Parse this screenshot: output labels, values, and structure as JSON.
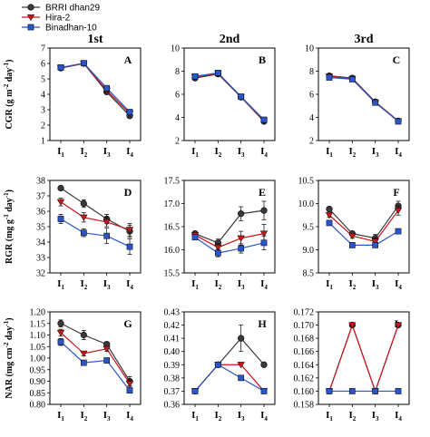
{
  "legend": [
    {
      "name": "BRRI dhan29",
      "color": "#3a3a3a",
      "marker": "circle"
    },
    {
      "name": "Hira-2",
      "color": "#c8161d",
      "marker": "triangle-down"
    },
    {
      "name": "Binadhan-10",
      "color": "#2b55c8",
      "marker": "square"
    }
  ],
  "column_titles": [
    "1st",
    "2nd",
    "3rd"
  ],
  "row_titles": [
    {
      "main": "CGR (g m",
      "sup1": "-2",
      "mid": " day",
      "sup2": "-1",
      "end": ")"
    },
    {
      "main": "RGR (mg g",
      "sup1": "-1",
      "mid": " day",
      "sup2": "-1",
      "end": ")"
    },
    {
      "main": "NAR (mg cm",
      "sup1": "-2",
      "mid": " day",
      "sup2": "-1",
      "end": ")"
    }
  ],
  "chart_data": [
    {
      "type": "line",
      "panel": "A",
      "categories": [
        "I1",
        "I2",
        "I3",
        "I4"
      ],
      "ylim": [
        1,
        7
      ],
      "yticks": [
        1,
        2,
        3,
        4,
        5,
        6,
        7
      ],
      "series": [
        {
          "name": "BRRI dhan29",
          "values": [
            5.7,
            6.0,
            4.15,
            2.6
          ],
          "err": [
            0.08,
            0.08,
            0.1,
            0.08
          ]
        },
        {
          "name": "Hira-2",
          "values": [
            5.72,
            6.0,
            4.25,
            2.75
          ],
          "err": [
            0.06,
            0.06,
            0.1,
            0.08
          ]
        },
        {
          "name": "Binadhan-10",
          "values": [
            5.74,
            6.02,
            4.4,
            2.85
          ],
          "err": [
            0.06,
            0.06,
            0.1,
            0.08
          ]
        }
      ]
    },
    {
      "type": "line",
      "panel": "B",
      "categories": [
        "I1",
        "I2",
        "I3",
        "I4"
      ],
      "ylim": [
        2,
        10
      ],
      "yticks": [
        2,
        4,
        6,
        8,
        10
      ],
      "series": [
        {
          "name": "BRRI dhan29",
          "values": [
            7.4,
            7.75,
            5.75,
            3.65
          ],
          "err": [
            0.08,
            0.08,
            0.08,
            0.08
          ]
        },
        {
          "name": "Hira-2",
          "values": [
            7.5,
            7.8,
            5.78,
            3.72
          ],
          "err": [
            0.08,
            0.08,
            0.08,
            0.08
          ]
        },
        {
          "name": "Binadhan-10",
          "values": [
            7.55,
            7.85,
            5.8,
            3.8
          ],
          "err": [
            0.08,
            0.08,
            0.08,
            0.08
          ]
        }
      ]
    },
    {
      "type": "line",
      "panel": "C",
      "categories": [
        "I1",
        "I2",
        "I3",
        "I4"
      ],
      "ylim": [
        2,
        10
      ],
      "yticks": [
        2,
        4,
        6,
        8,
        10
      ],
      "series": [
        {
          "name": "BRRI dhan29",
          "values": [
            7.6,
            7.4,
            5.35,
            3.7
          ],
          "err": [
            0.06,
            0.06,
            0.08,
            0.06
          ]
        },
        {
          "name": "Hira-2",
          "values": [
            7.55,
            7.35,
            5.3,
            3.68
          ],
          "err": [
            0.06,
            0.06,
            0.08,
            0.06
          ]
        },
        {
          "name": "Binadhan-10",
          "values": [
            7.45,
            7.3,
            5.28,
            3.65
          ],
          "err": [
            0.06,
            0.06,
            0.08,
            0.06
          ]
        }
      ]
    },
    {
      "type": "line",
      "panel": "D",
      "categories": [
        "I1",
        "I2",
        "I3",
        "I4"
      ],
      "ylim": [
        32,
        38
      ],
      "yticks": [
        32,
        33,
        34,
        35,
        36,
        37,
        38
      ],
      "series": [
        {
          "name": "BRRI dhan29",
          "values": [
            37.5,
            36.5,
            35.5,
            34.7
          ],
          "err": [
            0.1,
            0.25,
            0.3,
            0.4
          ]
        },
        {
          "name": "Hira-2",
          "values": [
            36.6,
            35.6,
            35.3,
            34.8
          ],
          "err": [
            0.25,
            0.3,
            0.3,
            0.4
          ]
        },
        {
          "name": "Binadhan-10",
          "values": [
            35.5,
            34.6,
            34.4,
            33.7
          ],
          "err": [
            0.3,
            0.25,
            0.5,
            0.5
          ]
        }
      ]
    },
    {
      "type": "line",
      "panel": "E",
      "categories": [
        "I1",
        "I2",
        "I3",
        "I4"
      ],
      "ylim": [
        15.5,
        17.5
      ],
      "yticks": [
        15.5,
        16.0,
        16.5,
        17.0,
        17.5
      ],
      "series": [
        {
          "name": "BRRI dhan29",
          "values": [
            16.35,
            16.15,
            16.78,
            16.85
          ],
          "err": [
            0.05,
            0.08,
            0.15,
            0.2
          ]
        },
        {
          "name": "Hira-2",
          "values": [
            16.32,
            16.05,
            16.25,
            16.35
          ],
          "err": [
            0.05,
            0.08,
            0.15,
            0.2
          ]
        },
        {
          "name": "Binadhan-10",
          "values": [
            16.27,
            15.93,
            16.03,
            16.15
          ],
          "err": [
            0.05,
            0.08,
            0.1,
            0.15
          ]
        }
      ]
    },
    {
      "type": "line",
      "panel": "F",
      "categories": [
        "I1",
        "I2",
        "I3",
        "I4"
      ],
      "ylim": [
        8.5,
        10.5
      ],
      "yticks": [
        8.5,
        9.0,
        9.5,
        10.0,
        10.5
      ],
      "series": [
        {
          "name": "BRRI dhan29",
          "values": [
            9.88,
            9.35,
            9.25,
            9.95
          ],
          "err": [
            0.05,
            0.05,
            0.08,
            0.1
          ]
        },
        {
          "name": "Hira-2",
          "values": [
            9.75,
            9.3,
            9.18,
            9.85
          ],
          "err": [
            0.05,
            0.05,
            0.08,
            0.1
          ]
        },
        {
          "name": "Binadhan-10",
          "values": [
            9.58,
            9.1,
            9.1,
            9.4
          ],
          "err": [
            0.05,
            0.03,
            0.05,
            0.03
          ]
        }
      ]
    },
    {
      "type": "line",
      "panel": "G",
      "categories": [
        "I1",
        "I2",
        "I3",
        "I4"
      ],
      "ylim": [
        0.8,
        1.2
      ],
      "yticks": [
        0.8,
        0.85,
        0.9,
        0.95,
        1.0,
        1.05,
        1.1,
        1.15,
        1.2
      ],
      "series": [
        {
          "name": "BRRI dhan29",
          "values": [
            1.15,
            1.1,
            1.06,
            0.9
          ],
          "err": [
            0.015,
            0.02,
            0.01,
            0.02
          ]
        },
        {
          "name": "Hira-2",
          "values": [
            1.11,
            1.02,
            1.04,
            0.89
          ],
          "err": [
            0.015,
            0.01,
            0.01,
            0.015
          ]
        },
        {
          "name": "Binadhan-10",
          "values": [
            1.07,
            0.98,
            0.99,
            0.86
          ],
          "err": [
            0.015,
            0.01,
            0.01,
            0.01
          ]
        }
      ]
    },
    {
      "type": "line",
      "panel": "H",
      "categories": [
        "I1",
        "I2",
        "I3",
        "I4"
      ],
      "ylim": [
        0.36,
        0.43
      ],
      "yticks": [
        0.36,
        0.37,
        0.38,
        0.39,
        0.4,
        0.41,
        0.42,
        0.43
      ],
      "series": [
        {
          "name": "BRRI dhan29",
          "values": [
            0.37,
            0.39,
            0.41,
            0.39
          ],
          "err": [
            0,
            0,
            0.01,
            0
          ]
        },
        {
          "name": "Hira-2",
          "values": [
            0.37,
            0.39,
            0.39,
            0.37
          ],
          "err": [
            0,
            0,
            0,
            0
          ]
        },
        {
          "name": "Binadhan-10",
          "values": [
            0.37,
            0.39,
            0.38,
            0.37
          ],
          "err": [
            0,
            0,
            0,
            0
          ]
        }
      ]
    },
    {
      "type": "line",
      "panel": "I",
      "categories": [
        "I1",
        "I2",
        "I3",
        "I4"
      ],
      "ylim": [
        0.158,
        0.172
      ],
      "yticks": [
        0.158,
        0.16,
        0.162,
        0.164,
        0.166,
        0.168,
        0.17,
        0.172
      ],
      "series": [
        {
          "name": "BRRI dhan29",
          "values": [
            0.16,
            0.17,
            0.16,
            0.17
          ],
          "err": [
            0,
            0,
            0,
            0
          ]
        },
        {
          "name": "Hira-2",
          "values": [
            0.16,
            0.17,
            0.16,
            0.17
          ],
          "err": [
            0,
            0,
            0,
            0
          ]
        },
        {
          "name": "Binadhan-10",
          "values": [
            0.16,
            0.16,
            0.16,
            0.16
          ],
          "err": [
            0,
            0,
            0,
            0
          ]
        }
      ]
    }
  ]
}
